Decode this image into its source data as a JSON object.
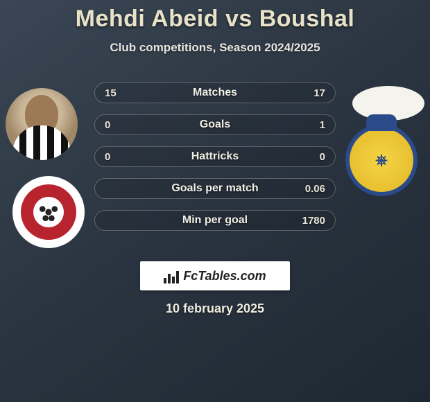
{
  "title": {
    "player1": "Mehdi Abeid",
    "vs": "vs",
    "player2": "Boushal",
    "color": "#e8e2c8",
    "fontsize": 34
  },
  "subtitle": "Club competitions, Season 2024/2025",
  "stats": {
    "type": "comparison-table",
    "row_bg": "rgba(0,0,0,0.12)",
    "row_border": "rgba(255,255,255,0.25)",
    "text_color": "#eae6da",
    "rows": [
      {
        "label": "Matches",
        "left": "15",
        "right": "17"
      },
      {
        "label": "Goals",
        "left": "0",
        "right": "1"
      },
      {
        "label": "Hattricks",
        "left": "0",
        "right": "0"
      },
      {
        "label": "Goals per match",
        "left": "",
        "right": "0.06"
      },
      {
        "label": "Min per goal",
        "left": "",
        "right": "1780"
      }
    ]
  },
  "left_club": {
    "bg": "#ffffff",
    "inner": "#b8242e"
  },
  "right_club": {
    "bg": "#f4d444",
    "border": "#2a4a8a"
  },
  "brand": "FcTables.com",
  "date": "10 february 2025",
  "background_gradient": [
    "#3a4654",
    "#2a3440",
    "#1e2832"
  ]
}
